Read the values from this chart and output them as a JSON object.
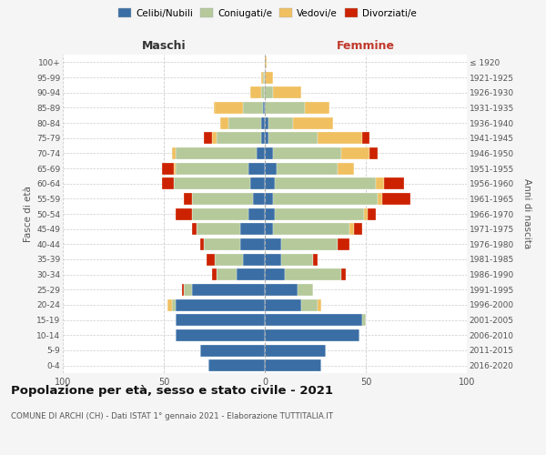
{
  "age_groups": [
    "0-4",
    "5-9",
    "10-14",
    "15-19",
    "20-24",
    "25-29",
    "30-34",
    "35-39",
    "40-44",
    "45-49",
    "50-54",
    "55-59",
    "60-64",
    "65-69",
    "70-74",
    "75-79",
    "80-84",
    "85-89",
    "90-94",
    "95-99",
    "100+"
  ],
  "birth_years": [
    "2016-2020",
    "2011-2015",
    "2006-2010",
    "2001-2005",
    "1996-2000",
    "1991-1995",
    "1986-1990",
    "1981-1985",
    "1976-1980",
    "1971-1975",
    "1966-1970",
    "1961-1965",
    "1956-1960",
    "1951-1955",
    "1946-1950",
    "1941-1945",
    "1936-1940",
    "1931-1935",
    "1926-1930",
    "1921-1925",
    "≤ 1920"
  ],
  "colors": {
    "celibi": "#3a6ea5",
    "coniugati": "#b5c99a",
    "vedovi": "#f0c060",
    "divorziati": "#cc2200"
  },
  "maschi": {
    "celibi": [
      28,
      32,
      44,
      44,
      44,
      36,
      14,
      11,
      12,
      12,
      8,
      6,
      7,
      8,
      4,
      2,
      2,
      1,
      0,
      0,
      0
    ],
    "coniugati": [
      0,
      0,
      0,
      0,
      2,
      4,
      10,
      14,
      18,
      22,
      28,
      30,
      38,
      36,
      40,
      22,
      16,
      10,
      2,
      1,
      0
    ],
    "vedovi": [
      0,
      0,
      0,
      0,
      2,
      0,
      0,
      0,
      0,
      0,
      0,
      0,
      0,
      1,
      2,
      2,
      4,
      14,
      5,
      1,
      0
    ],
    "divorziati": [
      0,
      0,
      0,
      0,
      0,
      1,
      2,
      4,
      2,
      2,
      8,
      4,
      6,
      6,
      0,
      4,
      0,
      0,
      0,
      0,
      0
    ]
  },
  "femmine": {
    "celibi": [
      28,
      30,
      47,
      48,
      18,
      16,
      10,
      8,
      8,
      4,
      5,
      4,
      5,
      6,
      4,
      2,
      2,
      0,
      0,
      0,
      0
    ],
    "coniugati": [
      0,
      0,
      0,
      2,
      8,
      8,
      28,
      16,
      28,
      38,
      44,
      52,
      50,
      30,
      34,
      24,
      12,
      20,
      4,
      0,
      0
    ],
    "vedovi": [
      0,
      0,
      0,
      0,
      2,
      0,
      0,
      0,
      0,
      2,
      2,
      2,
      4,
      8,
      14,
      22,
      20,
      12,
      14,
      4,
      1
    ],
    "divorziati": [
      0,
      0,
      0,
      0,
      0,
      0,
      2,
      2,
      6,
      4,
      4,
      14,
      10,
      0,
      4,
      4,
      0,
      0,
      0,
      0,
      0
    ]
  },
  "xlim": 100,
  "title": "Popolazione per età, sesso e stato civile - 2021",
  "subtitle": "COMUNE DI ARCHI (CH) - Dati ISTAT 1° gennaio 2021 - Elaborazione TUTTITALIA.IT",
  "ylabel_left": "Fasce di età",
  "ylabel_right": "Anni di nascita",
  "xlabel_left": "Maschi",
  "xlabel_right": "Femmine",
  "legend_labels": [
    "Celibi/Nubili",
    "Coniugati/e",
    "Vedovi/e",
    "Divorziati/e"
  ],
  "bg_color": "#f5f5f5",
  "plot_bg": "#ffffff"
}
